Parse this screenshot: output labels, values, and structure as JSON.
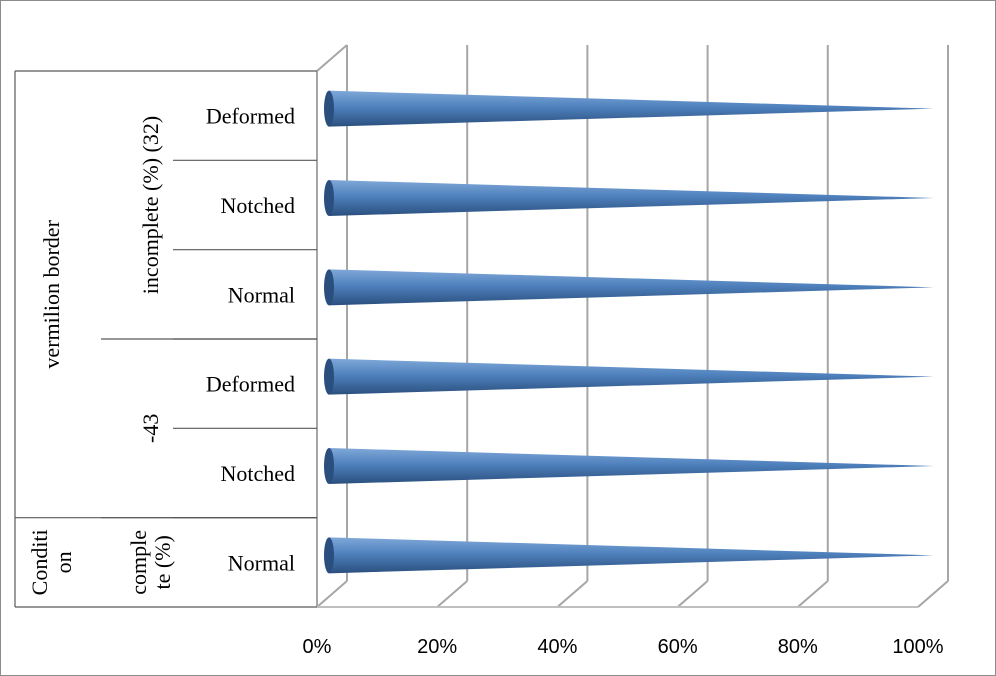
{
  "colors": {
    "cone_light": "#7fa8d8",
    "cone_mid": "#4f81bd",
    "cone_dark": "#2a4f7e",
    "grid": "#a6a6a6",
    "axis": "#bfbfbf",
    "table_line": "#595959",
    "text": "#000000"
  },
  "chart_data": {
    "type": "bar",
    "orientation": "horizontal",
    "bar_shape": "3d-cone",
    "xlim": [
      0,
      100
    ],
    "x_tick_labels": [
      "0%",
      "20%",
      "40%",
      "60%",
      "80%",
      "100%"
    ],
    "x_tick_values": [
      0,
      20,
      40,
      60,
      80,
      100
    ],
    "grid": true,
    "categories_bottom_to_top": [
      "Normal",
      "Notched",
      "Deformed",
      "Normal",
      "Notched",
      "Deformed"
    ],
    "values": [
      100,
      100,
      100,
      100,
      100,
      100
    ],
    "category_groups": {
      "level2": [
        {
          "label": "comple\nte (%)",
          "span_bottom_to_top": [
            0,
            0
          ]
        },
        {
          "label": "-43",
          "span_bottom_to_top": [
            1,
            2
          ]
        },
        {
          "label": "incomplete (%) (32)",
          "span_bottom_to_top": [
            3,
            5
          ]
        }
      ],
      "level1": [
        {
          "label": "Conditi\non",
          "span_bottom_to_top": [
            0,
            0
          ]
        },
        {
          "label": "vermilion border",
          "span_bottom_to_top": [
            1,
            5
          ]
        }
      ]
    }
  }
}
